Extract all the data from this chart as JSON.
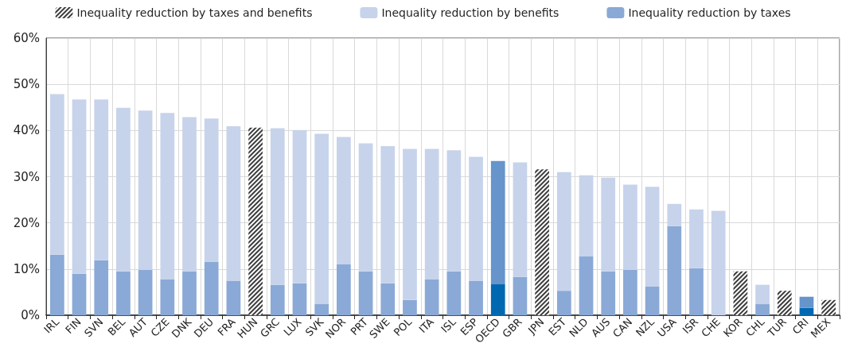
{
  "chart_data": {
    "type": "bar",
    "stacked": true,
    "grid": true,
    "legend": "top",
    "categories": [
      "IRL",
      "FIN",
      "SVN",
      "BEL",
      "AUT",
      "CZE",
      "DNK",
      "DEU",
      "FRA",
      "HUN",
      "GRC",
      "LUX",
      "SVK",
      "NOR",
      "PRT",
      "SWE",
      "POL",
      "ITA",
      "ISL",
      "ESP",
      "OECD",
      "GBR",
      "JPN",
      "EST",
      "NLD",
      "AUS",
      "CAN",
      "NZL",
      "USA",
      "ISR",
      "CHE",
      "KOR",
      "CHL",
      "TUR",
      "CRI",
      "MEX"
    ],
    "ylim": [
      0,
      60
    ],
    "yticks": [
      {
        "value": 0,
        "label": "0%"
      },
      {
        "value": 10,
        "label": "10%"
      },
      {
        "value": 20,
        "label": "20%"
      },
      {
        "value": 30,
        "label": "30%"
      },
      {
        "value": 40,
        "label": "40%"
      },
      {
        "value": 50,
        "label": "50%"
      },
      {
        "value": 60,
        "label": "60%"
      }
    ],
    "series": [
      {
        "name": "Inequality reduction by taxes",
        "color": "#8aa9d6",
        "values": [
          13.1,
          9.0,
          11.9,
          9.5,
          9.8,
          7.8,
          9.5,
          11.6,
          7.4,
          null,
          6.6,
          6.9,
          2.4,
          11.0,
          9.5,
          6.9,
          3.3,
          7.8,
          9.5,
          7.4,
          6.7,
          8.3,
          null,
          5.3,
          12.8,
          9.5,
          9.8,
          6.2,
          19.3,
          10.2,
          0,
          null,
          2.4,
          null,
          1.6,
          null
        ],
        "colors": [
          "#8aa9d6",
          "#8aa9d6",
          "#8aa9d6",
          "#8aa9d6",
          "#8aa9d6",
          "#8aa9d6",
          "#8aa9d6",
          "#8aa9d6",
          "#8aa9d6",
          "#8aa9d6",
          "#8aa9d6",
          "#8aa9d6",
          "#8aa9d6",
          "#8aa9d6",
          "#8aa9d6",
          "#8aa9d6",
          "#8aa9d6",
          "#8aa9d6",
          "#8aa9d6",
          "#8aa9d6",
          "#0068b0",
          "#8aa9d6",
          "#8aa9d6",
          "#8aa9d6",
          "#8aa9d6",
          "#8aa9d6",
          "#8aa9d6",
          "#8aa9d6",
          "#8aa9d6",
          "#8aa9d6",
          "#8aa9d6",
          "#8aa9d6",
          "#8aa9d6",
          "#8aa9d6",
          "#0068b0",
          "#8aa9d6"
        ]
      },
      {
        "name": "Inequality reduction by benefits",
        "color": "#c7d3eb",
        "values": [
          34.8,
          37.7,
          34.8,
          35.4,
          34.5,
          36.0,
          33.4,
          31.0,
          33.5,
          null,
          33.9,
          33.2,
          36.9,
          27.6,
          27.7,
          29.7,
          32.7,
          28.2,
          26.2,
          26.9,
          26.7,
          24.8,
          null,
          25.7,
          17.5,
          20.3,
          18.5,
          21.6,
          4.8,
          12.7,
          22.6,
          null,
          4.2,
          null,
          2.4,
          null
        ],
        "colors": [
          "#c7d3eb",
          "#c7d3eb",
          "#c7d3eb",
          "#c7d3eb",
          "#c7d3eb",
          "#c7d3eb",
          "#c7d3eb",
          "#c7d3eb",
          "#c7d3eb",
          "#c7d3eb",
          "#c7d3eb",
          "#c7d3eb",
          "#c7d3eb",
          "#c7d3eb",
          "#c7d3eb",
          "#c7d3eb",
          "#c7d3eb",
          "#c7d3eb",
          "#c7d3eb",
          "#c7d3eb",
          "#6694cb",
          "#c7d3eb",
          "#c7d3eb",
          "#c7d3eb",
          "#c7d3eb",
          "#c7d3eb",
          "#c7d3eb",
          "#c7d3eb",
          "#c7d3eb",
          "#c7d3eb",
          "#c7d3eb",
          "#c7d3eb",
          "#c7d3eb",
          "#c7d3eb",
          "#6694cb",
          "#c7d3eb"
        ]
      },
      {
        "name": "Inequality reduction by taxes and benefits",
        "color": "#3a3a3a",
        "values": [
          null,
          null,
          null,
          null,
          null,
          null,
          null,
          null,
          null,
          40.6,
          null,
          null,
          null,
          null,
          null,
          null,
          null,
          null,
          null,
          null,
          null,
          null,
          31.6,
          null,
          null,
          null,
          null,
          null,
          null,
          null,
          null,
          9.5,
          null,
          5.3,
          null,
          3.3
        ]
      }
    ]
  }
}
